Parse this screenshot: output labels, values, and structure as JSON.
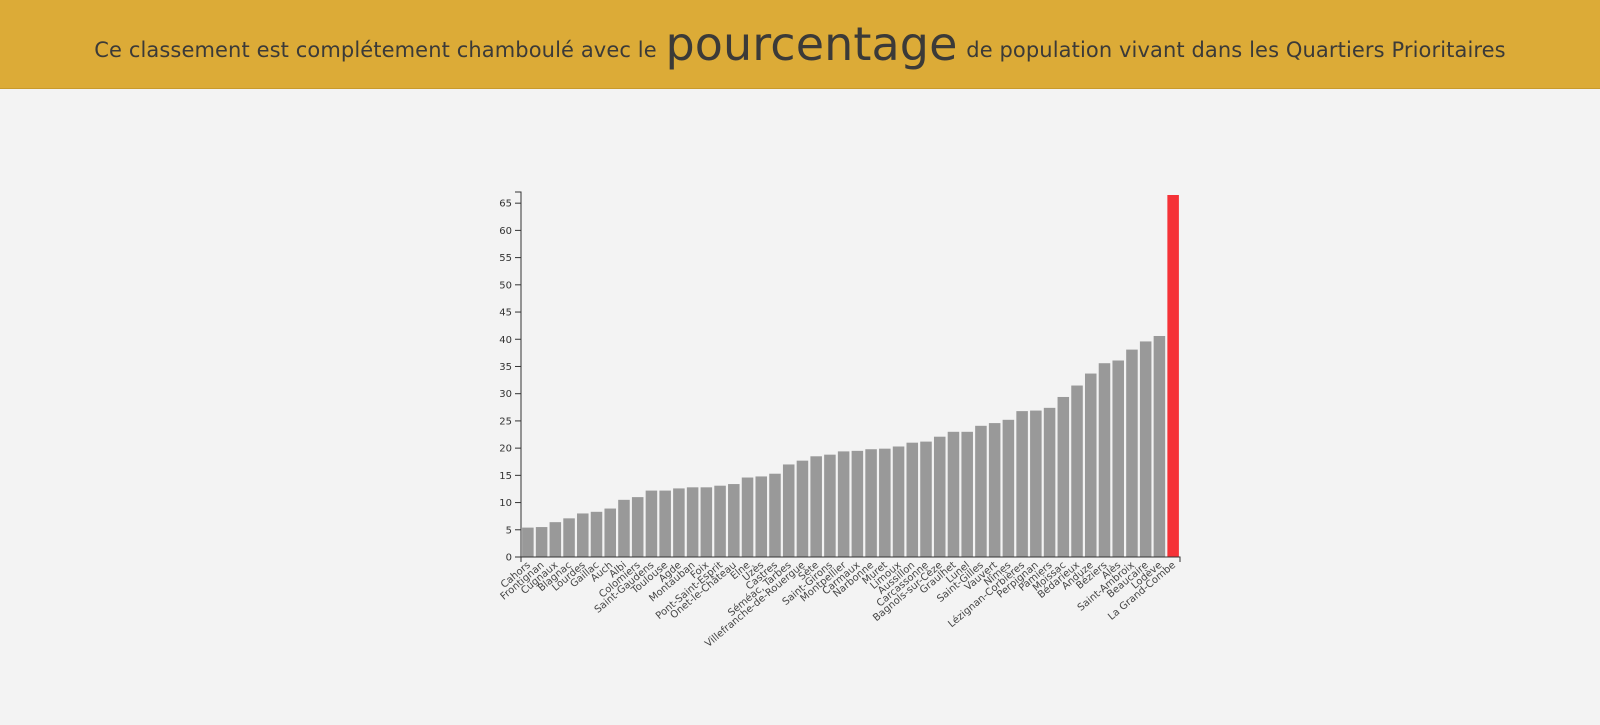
{
  "header": {
    "title_before": "Ce classement est complétement chamboulé avec le",
    "title_emphasis": "pourcentage",
    "title_after": "de population vivant dans les Quartiers Prioritaires"
  },
  "colors": {
    "banner": "#dcab37",
    "bar": "#999999",
    "highlight": "#f53237",
    "axis": "#333333"
  },
  "chart_data": {
    "type": "bar",
    "ylim": [
      0,
      66.5
    ],
    "yticks": [
      0,
      5,
      10,
      15,
      20,
      25,
      30,
      35,
      40,
      45,
      50,
      55,
      60,
      65
    ],
    "grid": false,
    "highlight_category": "La Grand-Combe",
    "categories": [
      "Cahors",
      "Frontignan",
      "Cugnaux",
      "Blagnac",
      "Lourdes",
      "Gaillac",
      "Auch",
      "Albi",
      "Colomiers",
      "Saint-Gaudens",
      "Toulouse",
      "Agde",
      "Montauban",
      "Foix",
      "Pont-Saint-Esprit",
      "Onet-le-Château",
      "Elne",
      "Uzès",
      "Castres",
      "Séméac, Tarbes",
      "Villefranche-de-Rouergue",
      "Sète",
      "Saint-Girons",
      "Montpellier",
      "Carmaux",
      "Narbonne",
      "Muret",
      "Limoux",
      "Aussillon",
      "Carcassonne",
      "Bagnols-sur-Cèze",
      "Graulhet",
      "Lunel",
      "Saint-Gilles",
      "Vauvert",
      "Nîmes",
      "Lézignan-Corbières",
      "Perpignan",
      "Pamiers",
      "Moissac",
      "Bédarieux",
      "Anduze",
      "Béziers",
      "Alès",
      "Saint-Ambroix",
      "Beaucaire",
      "Lodève",
      "La Grand-Combe"
    ],
    "values": [
      5.4,
      5.5,
      6.4,
      7.1,
      8.0,
      8.3,
      8.9,
      10.5,
      11.0,
      12.2,
      12.2,
      12.6,
      12.8,
      12.8,
      13.1,
      13.4,
      14.6,
      14.8,
      15.3,
      17.0,
      17.7,
      18.5,
      18.8,
      19.4,
      19.5,
      19.8,
      19.9,
      20.3,
      21.0,
      21.2,
      22.1,
      23.0,
      23.0,
      24.1,
      24.6,
      25.2,
      26.8,
      26.9,
      27.4,
      29.4,
      31.5,
      33.7,
      35.6,
      36.1,
      38.1,
      39.6,
      40.6,
      66.5
    ]
  }
}
